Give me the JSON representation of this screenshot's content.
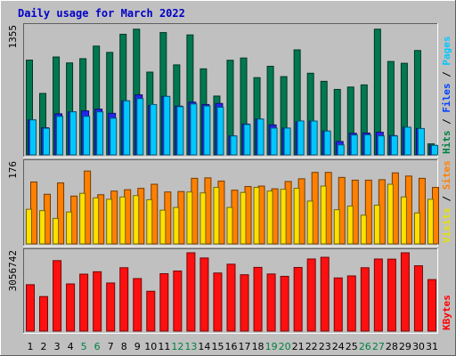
{
  "chart_data": {
    "type": "bar",
    "title": "Daily usage for March 2022",
    "days": [
      1,
      2,
      3,
      4,
      5,
      6,
      7,
      8,
      9,
      10,
      11,
      12,
      13,
      14,
      15,
      16,
      17,
      18,
      19,
      20,
      21,
      22,
      23,
      24,
      25,
      26,
      27,
      28,
      29,
      30,
      31
    ],
    "weekend_days": [
      5,
      6,
      12,
      13,
      19,
      20,
      26,
      27
    ],
    "panels": [
      {
        "name": "requests",
        "y_label": "1355",
        "ylim": [
          0,
          1355
        ],
        "side_labels": [
          {
            "text": "Hits",
            "color": "#008040"
          },
          {
            "text": " / ",
            "color": "#000000"
          },
          {
            "text": "Files",
            "color": "#0040ff"
          },
          {
            "text": " / ",
            "color": "#000000"
          },
          {
            "text": "Pages",
            "color": "#00c8ff"
          }
        ],
        "series": [
          {
            "name": "Hits",
            "color": "#007850",
            "values": [
              1009,
              654,
              1042,
              979,
              1024,
              1158,
              1091,
              1284,
              1338,
              881,
              1302,
              958,
              1277,
              916,
              626,
              1007,
              1031,
              822,
              943,
              833,
              1118,
              869,
              783,
              697,
              722,
              745,
              1338,
              994,
              975,
              1111,
              117
            ]
          },
          {
            "name": "Files",
            "color": "#2424f0",
            "values": [
              372,
              289,
              437,
              458,
              468,
              487,
              442,
              575,
              639,
              526,
              622,
              519,
              561,
              536,
              547,
              202,
              328,
              381,
              319,
              285,
              351,
              360,
              253,
              142,
              230,
              232,
              241,
              205,
              294,
              280,
              101
            ]
          },
          {
            "name": "Pages",
            "color": "#00c8ff",
            "values": [
              372,
              283,
              410,
              458,
              410,
              458,
              390,
              575,
              599,
              536,
              622,
              513,
              542,
              520,
              507,
              201,
              323,
              381,
              285,
              285,
              361,
              360,
              253,
              106,
              211,
              213,
              202,
              201,
              294,
              280,
              101
            ]
          }
        ]
      },
      {
        "name": "visitors",
        "y_label": "176",
        "ylim": [
          0,
          176
        ],
        "side_labels": [
          {
            "text": "Visits",
            "color": "#e8e000"
          },
          {
            "text": " / ",
            "color": "#000000"
          },
          {
            "text": "Sites",
            "color": "#ff8000"
          }
        ],
        "series": [
          {
            "name": "Visits",
            "color": "#ffe000",
            "values": [
              76,
              73,
              56,
              70,
              111,
              101,
              98,
              103,
              106,
              97,
              74,
              80,
              114,
              112,
              124,
              80,
              113,
              124,
              116,
              120,
              122,
              94,
              127,
              75,
              83,
              63,
              85,
              131,
              103,
              68,
              98
            ]
          },
          {
            "name": "Sites",
            "color": "#ff8000",
            "values": [
              136,
              109,
              134,
              105,
              160,
              108,
              116,
              119,
              122,
              131,
              114,
              115,
              144,
              145,
              138,
              118,
              126,
              127,
              121,
              137,
              143,
              157,
              157,
              146,
              140,
              140,
              141,
              156,
              149,
              144,
              124
            ]
          }
        ]
      },
      {
        "name": "kbytes",
        "y_label": "3056742",
        "ylim": [
          0,
          3056742
        ],
        "side_labels": [
          {
            "text": "KBytes",
            "color": "#ff0000"
          }
        ],
        "series": [
          {
            "name": "KBytes",
            "color": "#ff1010",
            "values": [
              1810590,
              1347765,
              2749716,
              1841458,
              2221680,
              2316393,
              1876908,
              2473002,
              2049813,
              1554282,
              2239947,
              2345814,
              3056742,
              2853405,
              2267055,
              2610519,
              2199573,
              2486736,
              2228643,
              2137458,
              2482977,
              2813286,
              2880231,
              2074398,
              2153682,
              2473002,
              2812926,
              2807835,
              3056742,
              2549718,
              2010423
            ]
          }
        ]
      }
    ]
  }
}
